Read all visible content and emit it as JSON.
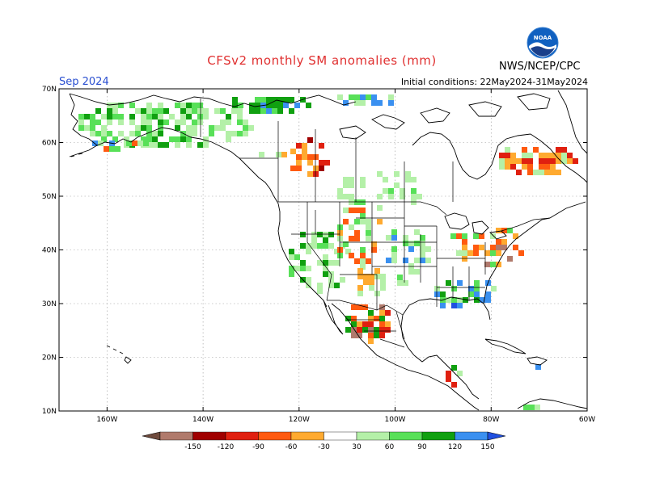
{
  "title": "CFSv2 monthly SM anomalies (mm)",
  "valid_month": "Sep 2024",
  "initial_conditions": "Initial conditions: 22May2024-31May2024",
  "agency": "NWS/NCEP/CPC",
  "logo": {
    "text": "NOAA",
    "icon": "noaa-logo-icon"
  },
  "lat_labels": [
    "70N",
    "60N",
    "50N",
    "40N",
    "30N",
    "20N",
    "10N"
  ],
  "lat_values": [
    70,
    60,
    50,
    40,
    30,
    20,
    10
  ],
  "lon_labels": [
    "160W",
    "140W",
    "120W",
    "100W",
    "80W",
    "60W"
  ],
  "lon_values": [
    -160,
    -140,
    -120,
    -100,
    -80,
    -60
  ],
  "colorbar": {
    "ticks": [
      "-150",
      "-120",
      "-90",
      "-60",
      "-30",
      "30",
      "60",
      "90",
      "120",
      "150"
    ],
    "colors": [
      "#6e4a3c",
      "#b07a6c",
      "#a00000",
      "#e02010",
      "#ff5a10",
      "#ffaa30",
      "#ffffff",
      "#b4f0a8",
      "#58e058",
      "#10a010",
      "#3a90f0",
      "#2050e0"
    ]
  }
}
